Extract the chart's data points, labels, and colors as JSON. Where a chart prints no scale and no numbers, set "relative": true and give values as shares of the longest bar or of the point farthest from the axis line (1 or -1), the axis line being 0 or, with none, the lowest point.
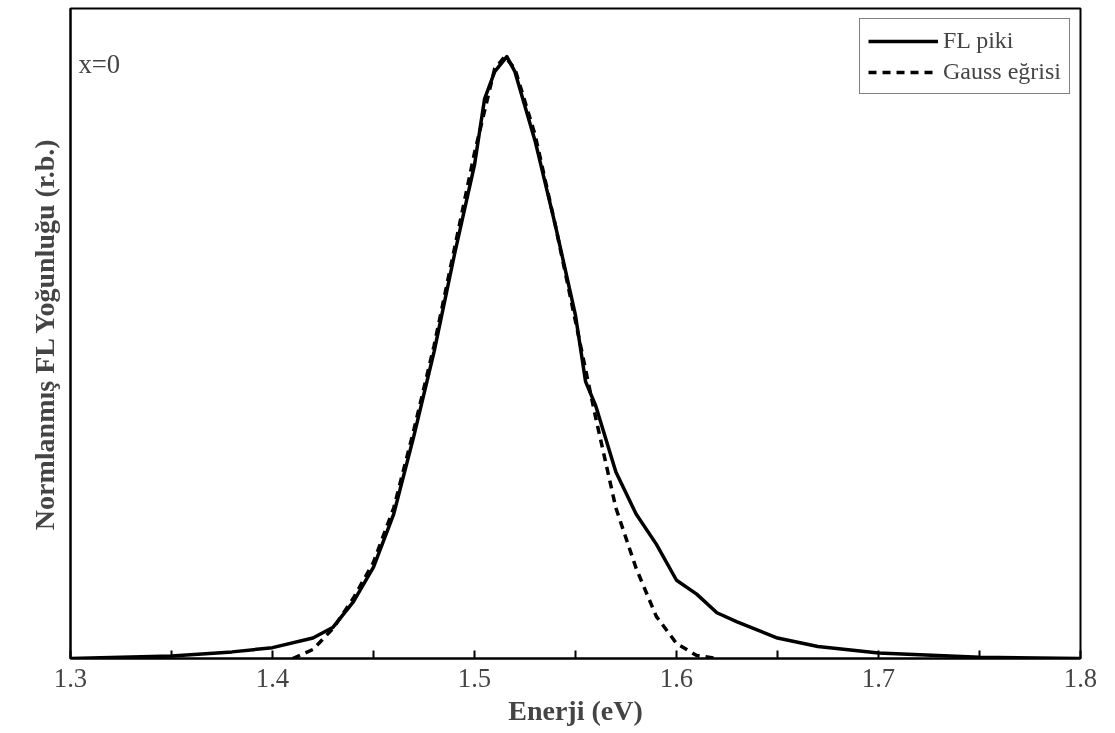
{
  "chart_data": {
    "type": "line",
    "relative": true,
    "xlabel": "Enerji (eV)",
    "ylabel": "Normlanmış FL Yoğunluğu (r.b.)",
    "annotations": [
      "x=0"
    ],
    "xlim": [
      1.3,
      1.8
    ],
    "xticks": [
      1.3,
      {
        "value": 1.35,
        "label": null
      },
      1.4,
      {
        "value": 1.45,
        "label": null
      },
      1.5,
      {
        "value": 1.55,
        "label": null
      },
      1.6,
      {
        "value": 1.65,
        "label": null
      },
      1.7,
      {
        "value": 1.75,
        "label": null
      },
      1.8
    ],
    "legend": "top right",
    "grid": false,
    "series": [
      {
        "name": "FL piki",
        "color": "#000000",
        "line_style": "solid",
        "x": [
          1.3,
          1.35,
          1.38,
          1.4,
          1.42,
          1.43,
          1.44,
          1.45,
          1.46,
          1.47,
          1.48,
          1.49,
          1.5,
          1.505,
          1.51,
          1.516,
          1.52,
          1.53,
          1.54,
          1.55,
          1.555,
          1.56,
          1.57,
          1.58,
          1.59,
          1.6,
          1.61,
          1.62,
          1.63,
          1.65,
          1.67,
          1.7,
          1.75,
          1.8
        ],
        "values": [
          0.0,
          0.004,
          0.011,
          0.018,
          0.034,
          0.052,
          0.094,
          0.152,
          0.24,
          0.37,
          0.51,
          0.67,
          0.82,
          0.93,
          0.975,
          1.0,
          0.975,
          0.86,
          0.72,
          0.57,
          0.46,
          0.42,
          0.31,
          0.24,
          0.19,
          0.13,
          0.107,
          0.076,
          0.061,
          0.034,
          0.02,
          0.009,
          0.002,
          0.0
        ]
      },
      {
        "name": "Gauss eğrisi",
        "color": "#000000",
        "line_style": "dashed",
        "x": [
          1.41,
          1.42,
          1.43,
          1.44,
          1.45,
          1.46,
          1.47,
          1.48,
          1.49,
          1.5,
          1.51,
          1.515,
          1.52,
          1.53,
          1.54,
          1.55,
          1.56,
          1.57,
          1.58,
          1.59,
          1.6,
          1.61,
          1.62
        ],
        "values": [
          0.0,
          0.015,
          0.05,
          0.1,
          0.16,
          0.25,
          0.38,
          0.52,
          0.68,
          0.84,
          0.98,
          1.0,
          0.98,
          0.87,
          0.72,
          0.56,
          0.4,
          0.25,
          0.15,
          0.07,
          0.025,
          0.005,
          0.0
        ]
      }
    ]
  }
}
